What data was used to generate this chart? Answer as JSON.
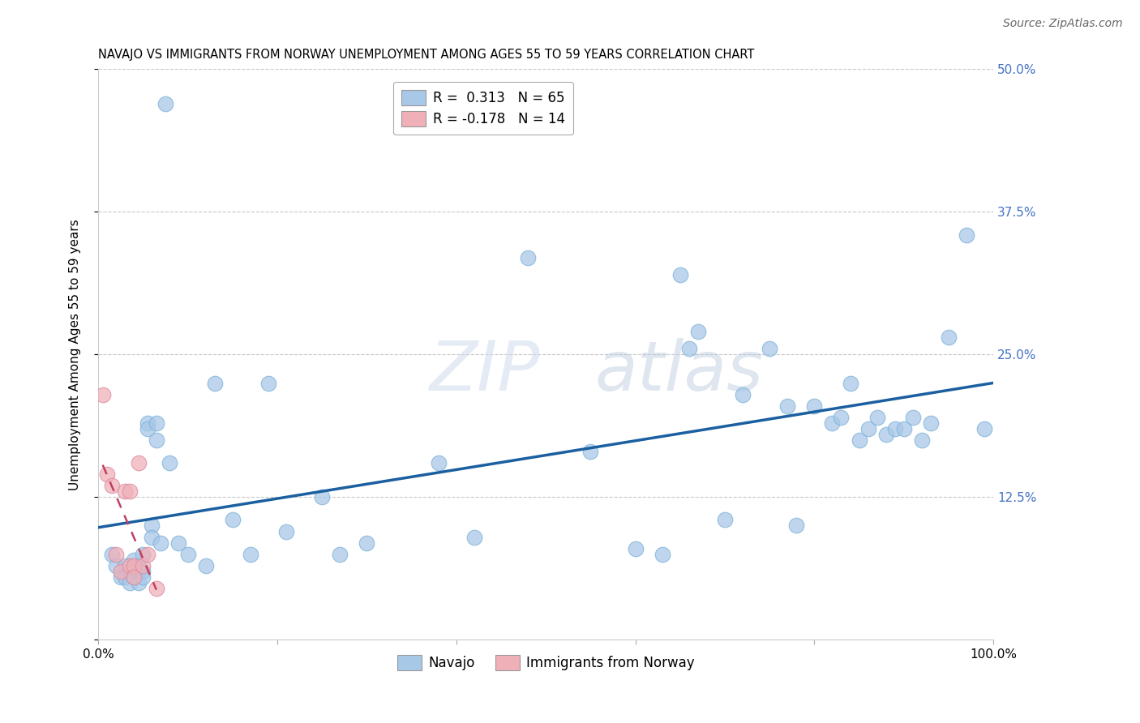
{
  "title": "NAVAJO VS IMMIGRANTS FROM NORWAY UNEMPLOYMENT AMONG AGES 55 TO 59 YEARS CORRELATION CHART",
  "source": "Source: ZipAtlas.com",
  "ylabel": "Unemployment Among Ages 55 to 59 years",
  "legend_navajo": "Navajo",
  "legend_norway": "Immigrants from Norway",
  "navajo_R": "0.313",
  "navajo_N": "65",
  "norway_R": "-0.178",
  "norway_N": "14",
  "xlim": [
    0.0,
    1.0
  ],
  "ylim": [
    0.0,
    0.5
  ],
  "yticks": [
    0.0,
    0.125,
    0.25,
    0.375,
    0.5
  ],
  "ytick_labels": [
    "",
    "12.5%",
    "25.0%",
    "37.5%",
    "50.0%"
  ],
  "xticks": [
    0.0,
    0.2,
    0.4,
    0.6,
    0.8,
    1.0
  ],
  "xtick_labels": [
    "0.0%",
    "",
    "",
    "",
    "",
    "100.0%"
  ],
  "navajo_color": "#a8c8e8",
  "navajo_edge_color": "#7ab0d8",
  "navajo_line_color": "#1a5fa0",
  "norway_color": "#f0b0b8",
  "norway_edge_color": "#d888a0",
  "norway_line_color": "#c04060",
  "watermark_zip": "ZIP",
  "watermark_atlas": "atlas",
  "background_color": "#ffffff",
  "grid_color": "#c8c8c8",
  "title_fontsize": 10.5,
  "axis_label_fontsize": 11,
  "tick_fontsize": 11,
  "legend_fontsize": 12,
  "source_fontsize": 10,
  "right_tick_color": "#4472c4",
  "navajo_x": [
    0.015,
    0.02,
    0.025,
    0.03,
    0.03,
    0.035,
    0.035,
    0.04,
    0.04,
    0.045,
    0.045,
    0.045,
    0.05,
    0.05,
    0.05,
    0.055,
    0.055,
    0.06,
    0.06,
    0.065,
    0.065,
    0.07,
    0.075,
    0.08,
    0.09,
    0.1,
    0.12,
    0.13,
    0.15,
    0.17,
    0.19,
    0.21,
    0.25,
    0.27,
    0.3,
    0.38,
    0.42,
    0.48,
    0.55,
    0.6,
    0.63,
    0.65,
    0.66,
    0.67,
    0.7,
    0.72,
    0.75,
    0.77,
    0.78,
    0.8,
    0.82,
    0.83,
    0.84,
    0.85,
    0.86,
    0.87,
    0.88,
    0.89,
    0.9,
    0.91,
    0.92,
    0.93,
    0.95,
    0.97,
    0.99
  ],
  "navajo_y": [
    0.075,
    0.065,
    0.055,
    0.065,
    0.055,
    0.06,
    0.05,
    0.07,
    0.055,
    0.065,
    0.06,
    0.05,
    0.075,
    0.06,
    0.055,
    0.19,
    0.185,
    0.1,
    0.09,
    0.19,
    0.175,
    0.085,
    0.47,
    0.155,
    0.085,
    0.075,
    0.065,
    0.225,
    0.105,
    0.075,
    0.225,
    0.095,
    0.125,
    0.075,
    0.085,
    0.155,
    0.09,
    0.335,
    0.165,
    0.08,
    0.075,
    0.32,
    0.255,
    0.27,
    0.105,
    0.215,
    0.255,
    0.205,
    0.1,
    0.205,
    0.19,
    0.195,
    0.225,
    0.175,
    0.185,
    0.195,
    0.18,
    0.185,
    0.185,
    0.195,
    0.175,
    0.19,
    0.265,
    0.355,
    0.185
  ],
  "norway_x": [
    0.005,
    0.01,
    0.015,
    0.02,
    0.025,
    0.03,
    0.035,
    0.035,
    0.04,
    0.04,
    0.045,
    0.05,
    0.055,
    0.065
  ],
  "norway_y": [
    0.215,
    0.145,
    0.135,
    0.075,
    0.06,
    0.13,
    0.13,
    0.065,
    0.065,
    0.055,
    0.155,
    0.065,
    0.075,
    0.045
  ]
}
